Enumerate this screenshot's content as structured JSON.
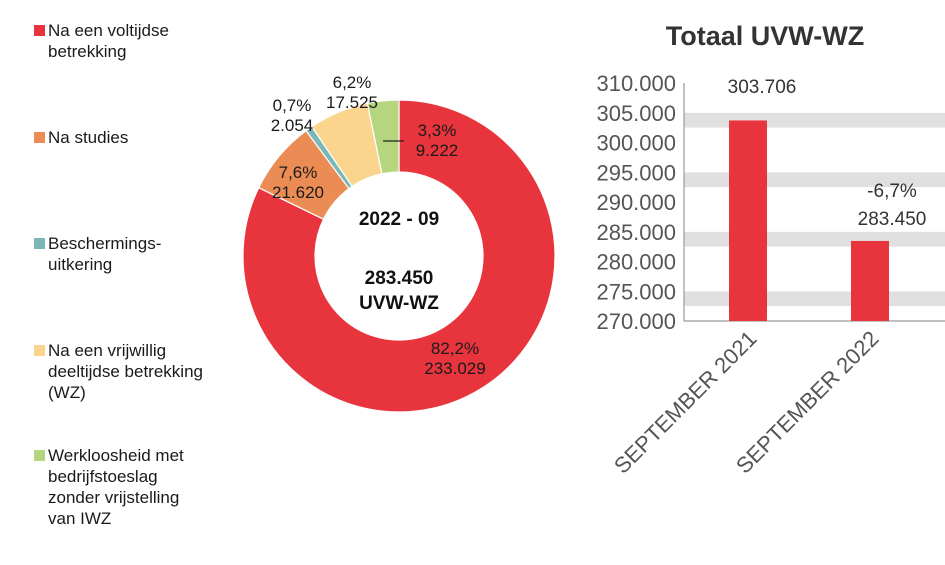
{
  "chart_data": [
    {
      "type": "pie",
      "variant": "donut",
      "center_label_period": "2022 - 09",
      "center_label_total": "283.450",
      "center_label_unit": "UVW-WZ",
      "slices": [
        {
          "name": "Na een voltijdse betrekking",
          "percent_label": "82,2%",
          "count_label": "233.029",
          "value": 233029,
          "color": "#e8353d"
        },
        {
          "name": "Na studies",
          "percent_label": "7,6%",
          "count_label": "21.620",
          "value": 21620,
          "color": "#ec8c55"
        },
        {
          "name": "Beschermings-uitkering",
          "percent_label": "0,7%",
          "count_label": "2.054",
          "value": 2054,
          "color": "#7ab8b8"
        },
        {
          "name": "Na een vrijwillig deeltijdse betrekking (WZ)",
          "percent_label": "6,2%",
          "count_label": "17.525",
          "value": 17525,
          "color": "#fbd58e"
        },
        {
          "name": "Werkloosheid met bedrijfstoeslag zonder vrijstelling van IWZ",
          "percent_label": "3,3%",
          "count_label": "9.222",
          "value": 9222,
          "color": "#b5d57f"
        }
      ]
    },
    {
      "type": "bar",
      "title": "Totaal UVW-WZ",
      "categories": [
        "SEPTEMBER 2021",
        "SEPTEMBER 2022"
      ],
      "values": [
        303706,
        283450
      ],
      "value_labels": [
        "303.706",
        "283.450"
      ],
      "change_label": "-6,7%",
      "ylim": [
        270000,
        310000
      ],
      "yticks": [
        270000,
        275000,
        280000,
        285000,
        290000,
        295000,
        300000,
        305000,
        310000
      ],
      "ytick_labels": [
        "270.000",
        "275.000",
        "280.000",
        "285.000",
        "290.000",
        "295.000",
        "300.000",
        "305.000",
        "310.000"
      ],
      "bar_color": "#e8353d",
      "band_color": "#e0e0e0"
    }
  ],
  "legend": [
    {
      "label": "Na een voltijdse\nbetrekking",
      "color": "#e8353d"
    },
    {
      "label": "Na studies",
      "color": "#ec8c55"
    },
    {
      "label": "Beschermings-\nuitkering",
      "color": "#7ab8b8"
    },
    {
      "label": "Na een vrijwillig\ndeeltijdse betrekking\n(WZ)",
      "color": "#fbd58e"
    },
    {
      "label": "Werkloosheid met\nbedrijfstoeslag\nzonder vrijstelling\nvan IWZ",
      "color": "#b5d57f"
    }
  ]
}
